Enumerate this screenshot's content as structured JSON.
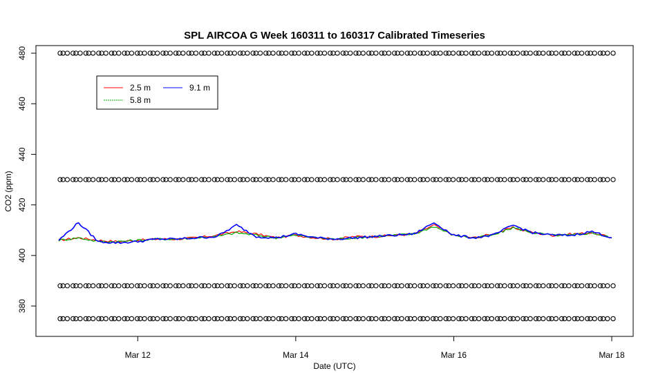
{
  "chart_data": {
    "type": "line",
    "title": "SPL AIRCOA G  Week 160311 to 160317  Calibrated Timeseries",
    "xlabel": "Date (UTC)",
    "ylabel": "CO2 (ppm)",
    "xlim": [
      "2016-03-11",
      "2016-03-18"
    ],
    "ylim": [
      368,
      483
    ],
    "x_ticks": [
      {
        "label": "Mar 12",
        "value": "2016-03-12"
      },
      {
        "label": "Mar 14",
        "value": "2016-03-14"
      },
      {
        "label": "Mar 16",
        "value": "2016-03-16"
      },
      {
        "label": "Mar 18",
        "value": "2016-03-18"
      }
    ],
    "y_ticks": [
      380,
      400,
      420,
      440,
      460,
      480
    ],
    "grid": false,
    "legend_position": "top-left",
    "colors": {
      "2.5 m": "#ff0000",
      "5.8 m": "#00aa00",
      "9.1 m": "#0000ff",
      "reference": "#000000"
    },
    "x": [
      "2016-03-11 00:00",
      "2016-03-11 06:00",
      "2016-03-11 12:00",
      "2016-03-11 18:00",
      "2016-03-12 00:00",
      "2016-03-12 06:00",
      "2016-03-12 12:00",
      "2016-03-12 18:00",
      "2016-03-13 00:00",
      "2016-03-13 06:00",
      "2016-03-13 12:00",
      "2016-03-13 18:00",
      "2016-03-14 00:00",
      "2016-03-14 06:00",
      "2016-03-14 12:00",
      "2016-03-14 18:00",
      "2016-03-15 00:00",
      "2016-03-15 06:00",
      "2016-03-15 12:00",
      "2016-03-15 18:00",
      "2016-03-16 00:00",
      "2016-03-16 06:00",
      "2016-03-16 12:00",
      "2016-03-16 18:00",
      "2016-03-17 00:00",
      "2016-03-17 06:00",
      "2016-03-17 12:00",
      "2016-03-17 18:00",
      "2016-03-18 00:00"
    ],
    "series": [
      {
        "name": "2.5 m",
        "values": [
          406.0,
          407.0,
          406.0,
          405.5,
          406.0,
          406.5,
          406.5,
          407.0,
          408.0,
          409.5,
          408.5,
          407.0,
          408.0,
          407.0,
          406.5,
          407.5,
          407.5,
          408.0,
          408.5,
          412.0,
          408.0,
          407.0,
          408.5,
          411.0,
          409.0,
          408.0,
          408.5,
          409.0,
          407.0
        ]
      },
      {
        "name": "5.8 m",
        "values": [
          406.0,
          407.0,
          405.5,
          405.5,
          406.0,
          406.5,
          406.5,
          407.0,
          407.5,
          409.0,
          408.0,
          407.0,
          408.0,
          407.0,
          406.5,
          407.0,
          407.5,
          408.0,
          408.5,
          411.5,
          408.0,
          407.0,
          408.0,
          411.0,
          409.0,
          408.0,
          408.0,
          409.0,
          407.0
        ]
      },
      {
        "name": "9.1 m",
        "values": [
          406.0,
          413.0,
          405.5,
          405.0,
          405.5,
          406.5,
          406.5,
          407.0,
          407.5,
          412.0,
          407.5,
          407.0,
          408.5,
          407.0,
          406.5,
          407.0,
          407.5,
          408.0,
          408.5,
          413.0,
          408.0,
          407.0,
          408.0,
          412.0,
          409.0,
          408.0,
          408.0,
          409.5,
          407.0
        ]
      }
    ],
    "reference_series": [
      {
        "values_y": 480
      },
      {
        "values_y": 430
      },
      {
        "values_y": 388
      },
      {
        "values_y": 375
      }
    ],
    "legend": [
      {
        "label": "2.5 m",
        "color": "#ff0000"
      },
      {
        "label": "5.8 m",
        "color": "#00aa00"
      },
      {
        "label": "9.1 m",
        "color": "#0000ff"
      }
    ]
  }
}
